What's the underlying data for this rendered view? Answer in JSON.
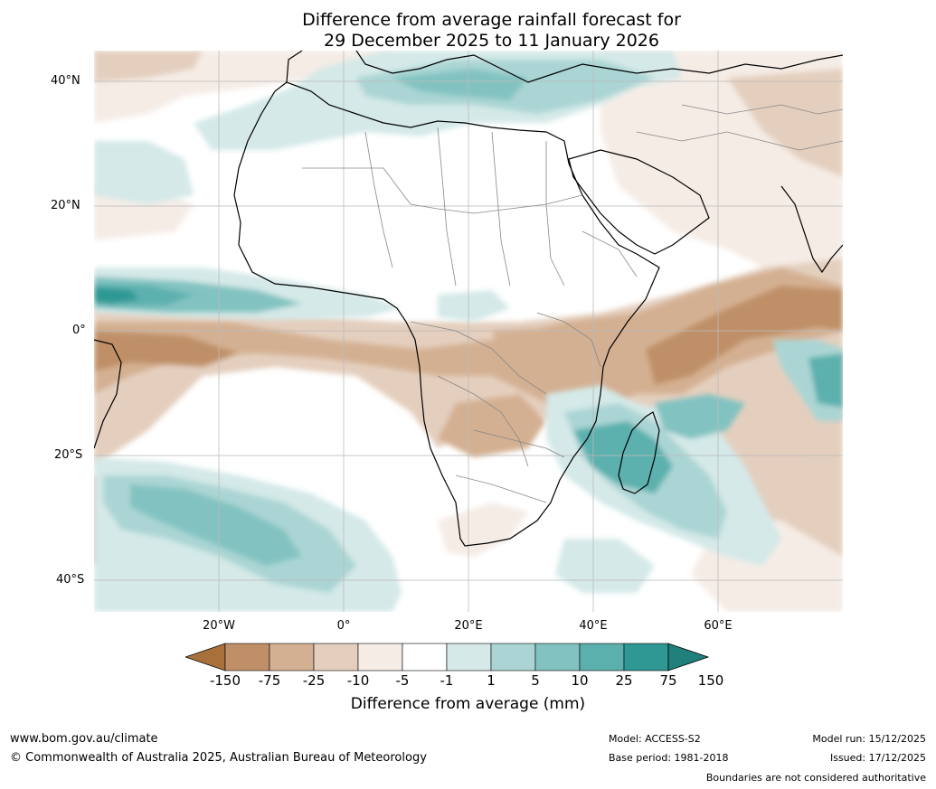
{
  "title": {
    "line1": "Difference from average rainfall forecast for",
    "line2": "29 December 2025 to 11 January 2026"
  },
  "axes": {
    "lat_labels": [
      "40°N",
      "20°N",
      "0°",
      "20°S",
      "40°S"
    ],
    "lon_labels": [
      "20°W",
      "0°",
      "20°E",
      "40°E",
      "60°E"
    ],
    "lat_range": [
      -45,
      45
    ],
    "lon_range": [
      -40,
      80
    ],
    "gridlines": true
  },
  "colorbar": {
    "label": "Difference from average (mm)",
    "ticks": [
      "-150",
      "-75",
      "-25",
      "-10",
      "-5",
      "-1",
      "1",
      "5",
      "10",
      "25",
      "75",
      "150"
    ],
    "colors": [
      "#a8703a",
      "#bf9068",
      "#d4b092",
      "#e4cfbe",
      "#f5ece6",
      "#ffffff",
      "#d4e9e8",
      "#aad5d4",
      "#82c3c1",
      "#5bb0ae",
      "#2f9894",
      "#1f807c"
    ]
  },
  "footer": {
    "website": "www.bom.gov.au/climate",
    "copyright": "© Commonwealth of Australia 2025, Australian Bureau of Meteorology",
    "model": "Model: ACCESS-S2",
    "base_period": "Base period: 1981-2018",
    "model_run": "Model run: 15/12/2025",
    "issued": "Issued: 17/12/2025",
    "disclaimer": "Boundaries are not considered authoritative"
  }
}
